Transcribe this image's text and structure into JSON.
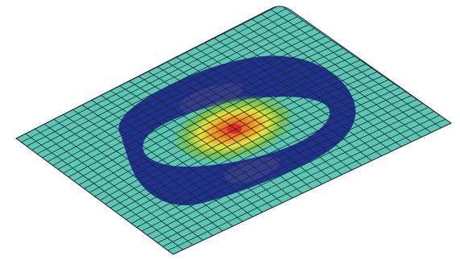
{
  "scene": {
    "plate_color": "#5cc7b4",
    "mesh_line_color": "#1a2a2e",
    "mesh_divisions": {
      "u": 28,
      "v": 30
    },
    "contour_colors": {
      "low": "#1f2f92",
      "mid_dark": "#2a4bb0",
      "cyan": "#58c8b3",
      "green": "#79c44a",
      "yellow": "#e7e43b",
      "orange": "#f2931f",
      "red": "#e9281d"
    }
  }
}
